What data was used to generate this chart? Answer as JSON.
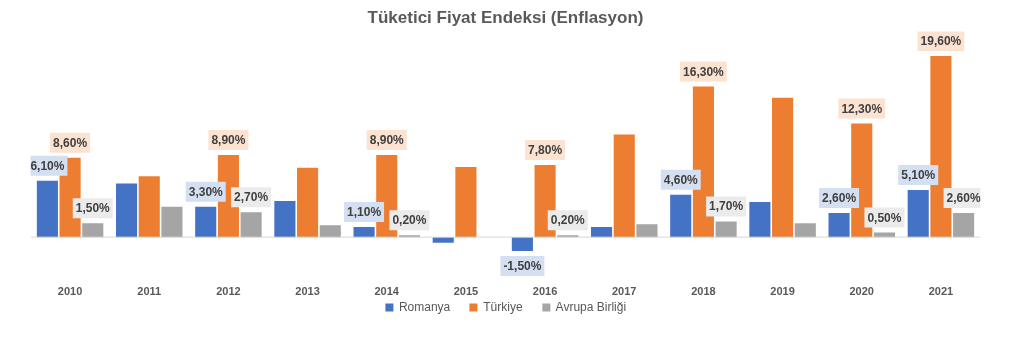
{
  "chart_data": {
    "type": "bar",
    "title": "Tüketici Fiyat Endeksi (Enflasyon)",
    "categories": [
      "2010",
      "2011",
      "2012",
      "2013",
      "2014",
      "2015",
      "2016",
      "2017",
      "2018",
      "2019",
      "2020",
      "2021"
    ],
    "series": [
      {
        "name": "Romanya",
        "color": "#4472c4",
        "values": [
          6.1,
          5.8,
          3.3,
          3.9,
          1.1,
          -0.6,
          -1.5,
          1.1,
          4.6,
          3.8,
          2.6,
          5.1
        ],
        "value_labels": [
          "6,10%",
          null,
          "3,30%",
          null,
          "1,10%",
          null,
          "-1,50%",
          null,
          "4,60%",
          null,
          "2,60%",
          "5,10%"
        ]
      },
      {
        "name": "Türkiye",
        "color": "#ed7d31",
        "values": [
          8.6,
          6.6,
          8.9,
          7.5,
          8.9,
          7.6,
          7.8,
          11.1,
          16.3,
          15.1,
          12.3,
          19.6
        ],
        "value_labels": [
          "8,60%",
          null,
          "8,90%",
          null,
          "8,90%",
          null,
          "7,80%",
          null,
          "16,30%",
          null,
          "12,30%",
          "19,60%"
        ]
      },
      {
        "name": "Avrupa Birliği",
        "color": "#a5a5a5",
        "values": [
          1.5,
          3.3,
          2.7,
          1.3,
          0.2,
          null,
          0.2,
          1.4,
          1.7,
          1.5,
          0.5,
          2.6
        ],
        "value_labels": [
          "1,50%",
          null,
          "2,70%",
          null,
          "0,20%",
          null,
          "0,20%",
          null,
          "1,70%",
          null,
          "0,50%",
          "2,60%"
        ]
      }
    ],
    "legend": "bottom"
  }
}
